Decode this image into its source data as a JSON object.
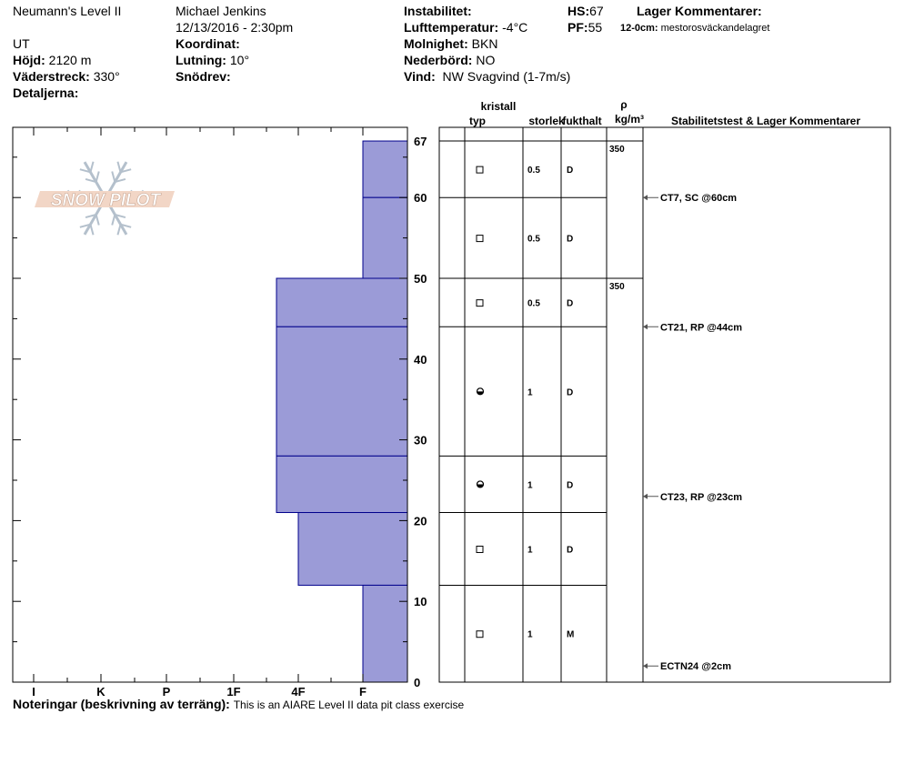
{
  "header": {
    "pit_name": "Neumann's Level II",
    "observer": "Michael Jenkins",
    "datetime": "12/13/2016 - 2:30pm",
    "state": "UT",
    "elevation_label": "Höjd:",
    "elevation": "2120 m",
    "aspect_label": "Väderstreck:",
    "aspect": "330°",
    "details_label": "Detaljerna:",
    "coordinate_label": "Koordinat:",
    "slope_label": "Lutning:",
    "slope": "10°",
    "wind_loading_label": "Snödrev:",
    "instability_label": "Instabilitet:",
    "air_temp_label": "Lufttemperatur:",
    "air_temp": "-4°C",
    "sky_label": "Molnighet:",
    "sky": "BKN",
    "precip_label": "Nederbörd:",
    "precip": "NO",
    "wind_label": "Vind:",
    "wind": "NW Svagvind (1-7m/s)",
    "hs_label": "HS:",
    "hs": "67",
    "pf_label": "PF:",
    "pf": "55",
    "layer_comments_label": "Lager Kommentarer:",
    "layer_comment_key": "12-0cm:",
    "layer_comment": "mestorosväckandelagret"
  },
  "table_headers": {
    "crystal": "kristall",
    "type": "typ",
    "size": "storlek",
    "moisture": "fukthalt",
    "rho": "ρ",
    "density_unit": "kg/m³",
    "stability": "Stabilitetstest & Lager Kommentarer"
  },
  "logo_text": "SNOW PILOT",
  "notes": {
    "label": "Noteringar (beskrivning av terräng):",
    "text": "This is an AIARE Level II data pit class exercise"
  },
  "colors": {
    "layer_fill": "#9b9bd7",
    "layer_edge": "#00008b"
  },
  "chart_data": {
    "type": "bar",
    "hardness_scale": [
      "I",
      "K",
      "P",
      "1F",
      "4F",
      "F"
    ],
    "y_axis": {
      "range": [
        0,
        67
      ],
      "ticks": [
        0,
        10,
        20,
        30,
        40,
        50,
        60,
        67
      ]
    },
    "layers": [
      {
        "top": 67,
        "bottom": 60,
        "hardness": "F",
        "grain": "new",
        "size": "0.5",
        "moisture": "D"
      },
      {
        "top": 60,
        "bottom": 50,
        "hardness": "F",
        "grain": "new",
        "size": "0.5",
        "moisture": "D"
      },
      {
        "top": 50,
        "bottom": 44,
        "hardness": "4F+",
        "grain": "new",
        "size": "0.5",
        "moisture": "D"
      },
      {
        "top": 44,
        "bottom": 28,
        "hardness": "4F+",
        "grain": "rounding-facet",
        "size": "1",
        "moisture": "D"
      },
      {
        "top": 28,
        "bottom": 21,
        "hardness": "4F+",
        "grain": "rounding-facet",
        "size": "1",
        "moisture": "D"
      },
      {
        "top": 21,
        "bottom": 12,
        "hardness": "4F",
        "grain": "new",
        "size": "1",
        "moisture": "D"
      },
      {
        "top": 12,
        "bottom": 0,
        "hardness": "F",
        "grain": "new",
        "size": "1",
        "moisture": "M"
      }
    ],
    "densities": [
      {
        "depth": 67,
        "value": "350"
      },
      {
        "depth": 50,
        "value": "350"
      }
    ],
    "stability_tests": [
      {
        "depth": 60,
        "label": "CT7, SC @60cm"
      },
      {
        "depth": 44,
        "label": "CT21, RP @44cm"
      },
      {
        "depth": 23,
        "label": "CT23, RP @23cm"
      },
      {
        "depth": 2,
        "label": "ECTN24 @2cm"
      }
    ]
  }
}
